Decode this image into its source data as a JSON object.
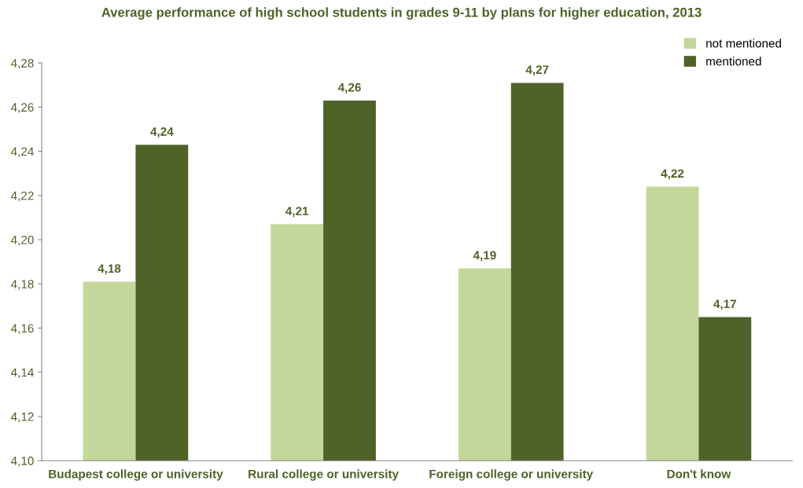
{
  "chart_data": {
    "type": "bar",
    "title": "Average performance of high school students in grades 9-11 by plans for higher education, 2013",
    "categories": [
      "Budapest college or university",
      "Rural college or university",
      "Foreign college or university",
      "Don't know"
    ],
    "series": [
      {
        "name": "not mentioned",
        "color": "#c4d79b",
        "values": [
          4.181,
          4.207,
          4.187,
          4.224
        ],
        "value_labels": [
          "4,18",
          "4,21",
          "4,19",
          "4,22"
        ]
      },
      {
        "name": "mentioned",
        "color": "#4f6228",
        "values": [
          4.243,
          4.263,
          4.271,
          4.165
        ],
        "value_labels": [
          "4,24",
          "4,26",
          "4,27",
          "4,17"
        ]
      }
    ],
    "ylim": [
      4.1,
      4.28
    ],
    "yticks": [
      {
        "value": 4.1,
        "label": "4,10"
      },
      {
        "value": 4.12,
        "label": "4,12"
      },
      {
        "value": 4.14,
        "label": "4,14"
      },
      {
        "value": 4.16,
        "label": "4,16"
      },
      {
        "value": 4.18,
        "label": "4,18"
      },
      {
        "value": 4.2,
        "label": "4,20"
      },
      {
        "value": 4.22,
        "label": "4,22"
      },
      {
        "value": 4.24,
        "label": "4,24"
      },
      {
        "value": 4.26,
        "label": "4,26"
      },
      {
        "value": 4.28,
        "label": "4,28"
      }
    ],
    "grid": false,
    "legend": "top right"
  }
}
